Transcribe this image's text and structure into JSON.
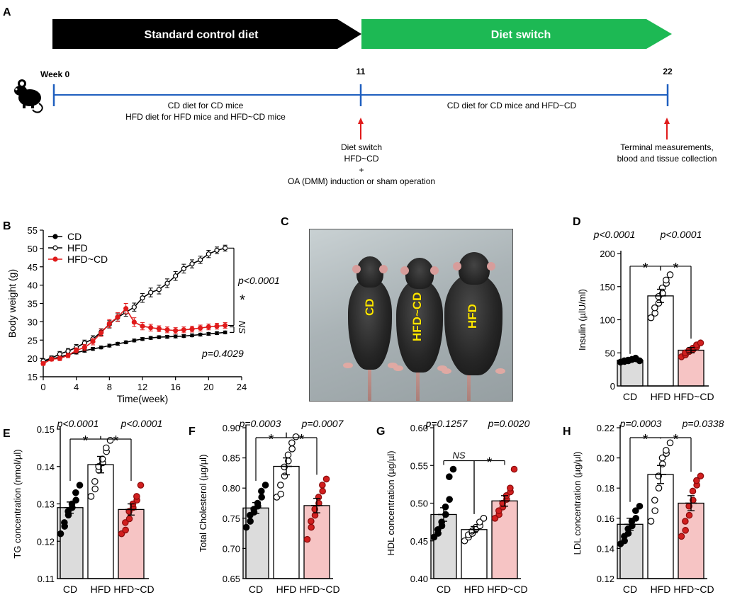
{
  "panels": {
    "A": "A",
    "B": "B",
    "C": "C",
    "D": "D",
    "E": "E",
    "F": "F",
    "G": "G",
    "H": "H"
  },
  "panel_a": {
    "arrow_black": "Standard control diet",
    "arrow_green": "Diet switch",
    "week0": "Week 0",
    "week11": "11",
    "week22": "22",
    "seg1_line1": "CD diet for CD mice",
    "seg1_line2": "HFD diet for HFD mice   and HFD~CD mice",
    "seg2": "CD diet for CD  mice  and HFD~CD",
    "switch_line1": "Diet switch",
    "switch_line2": "HFD~CD",
    "switch_plus": "+",
    "switch_line3": "OA (DMM) induction or sham operation",
    "terminal_line1": "Terminal measurements,",
    "terminal_line2": "blood and tissue collection",
    "colors": {
      "black_arrow": "#000000",
      "green_arrow": "#1db954",
      "timeline": "#1f5fbf",
      "red_arrow": "#e01b1b"
    }
  },
  "panel_c": {
    "label_cd": "CD",
    "label_hfdcd": "HFD~CD",
    "label_hfd": "HFD"
  },
  "chart_data": [
    {
      "id": "B",
      "type": "line",
      "xlabel": "Time(week)",
      "ylabel": "Body weight (g)",
      "xlim": [
        0,
        24
      ],
      "ylim": [
        15,
        55
      ],
      "xticks": [
        "0",
        "4",
        "8",
        "12",
        "16",
        "20",
        "24"
      ],
      "yticks": [
        "15",
        "20",
        "25",
        "30",
        "35",
        "40",
        "45",
        "50",
        "55"
      ],
      "legend": [
        "CD",
        "HFD",
        "HFD~CD"
      ],
      "annotations": {
        "p_top": "p<0.0001",
        "star": "*",
        "ns": "NS",
        "p_bottom": "p=0.4029"
      },
      "x": [
        0,
        1,
        2,
        3,
        4,
        5,
        6,
        7,
        8,
        9,
        10,
        11,
        12,
        13,
        14,
        15,
        16,
        17,
        18,
        19,
        20,
        21,
        22
      ],
      "series": [
        {
          "name": "CD",
          "color": "#000000",
          "fill": "#000000",
          "values": [
            19.2,
            19.8,
            20.4,
            21.0,
            21.6,
            22.1,
            22.6,
            23.0,
            23.5,
            24.0,
            24.4,
            24.9,
            25.3,
            25.6,
            25.8,
            25.9,
            26.0,
            26.1,
            26.3,
            26.5,
            26.7,
            26.9,
            27.1
          ],
          "err": [
            0.4,
            0.4,
            0.4,
            0.4,
            0.4,
            0.4,
            0.4,
            0.4,
            0.4,
            0.4,
            0.4,
            0.4,
            0.4,
            0.4,
            0.4,
            0.4,
            0.4,
            0.4,
            0.4,
            0.4,
            0.4,
            0.4,
            0.4
          ]
        },
        {
          "name": "HFD",
          "color": "#000000",
          "fill": "#ffffff",
          "values": [
            19.3,
            20.1,
            21.2,
            22.0,
            23.0,
            24.2,
            25.3,
            27.2,
            29.3,
            31.2,
            32.6,
            34.0,
            36.5,
            38.0,
            38.8,
            40.5,
            42.5,
            44.5,
            45.8,
            46.9,
            48.5,
            49.5,
            50.1
          ],
          "err": [
            0.6,
            0.6,
            0.7,
            0.7,
            0.8,
            0.8,
            0.9,
            0.9,
            1.0,
            1.0,
            1.1,
            1.1,
            1.2,
            1.2,
            1.2,
            1.2,
            1.2,
            1.2,
            1.1,
            1.0,
            1.0,
            0.9,
            0.8
          ]
        },
        {
          "name": "HFD~CD",
          "color": "#e01b1b",
          "fill": "#e01b1b",
          "values": [
            18.6,
            19.8,
            20.0,
            20.8,
            22.2,
            23.0,
            24.6,
            27.0,
            29.5,
            31.3,
            33.6,
            29.9,
            28.8,
            28.4,
            28.1,
            27.8,
            27.6,
            27.8,
            28.0,
            28.3,
            28.6,
            28.8,
            29.0
          ],
          "err": [
            0.5,
            0.5,
            0.6,
            0.6,
            0.7,
            0.8,
            0.9,
            1.0,
            1.1,
            1.2,
            1.4,
            1.2,
            1.0,
            0.9,
            0.8,
            0.8,
            0.8,
            0.8,
            0.8,
            0.8,
            0.8,
            0.8,
            0.8
          ]
        }
      ]
    },
    {
      "id": "D",
      "type": "bar",
      "ylabel": "Insulin (µlU/ml)",
      "ylim": [
        0,
        200
      ],
      "yticks": [
        "0",
        "50",
        "100",
        "150",
        "200"
      ],
      "categories": [
        "CD",
        "HFD",
        "HFD~CD"
      ],
      "values": [
        39,
        136,
        54
      ],
      "err": [
        2,
        10,
        4
      ],
      "points": [
        [
          36,
          37,
          38,
          38,
          39,
          40,
          40,
          41,
          42,
          38
        ],
        [
          103,
          110,
          118,
          125,
          135,
          140,
          148,
          155,
          160,
          168
        ],
        [
          44,
          47,
          50,
          52,
          54,
          55,
          57,
          59,
          62,
          65
        ]
      ],
      "pvalues": [
        "p<0.0001",
        "p<0.0001"
      ],
      "sig": [
        "*",
        "*"
      ]
    },
    {
      "id": "E",
      "type": "bar",
      "ylabel": "TG concentration (nmol/µl)",
      "ylim": [
        0.11,
        0.15
      ],
      "yticks": [
        "0.11",
        "0.12",
        "0.13",
        "0.14",
        "0.15"
      ],
      "categories": [
        "CD",
        "HFD",
        "HFD~CD"
      ],
      "values": [
        0.129,
        0.1405,
        0.1285
      ],
      "err": [
        0.0015,
        0.0022,
        0.0015
      ],
      "points": [
        [
          0.122,
          0.124,
          0.125,
          0.127,
          0.128,
          0.129,
          0.13,
          0.131,
          0.133,
          0.135
        ],
        [
          0.132,
          0.134,
          0.136,
          0.139,
          0.14,
          0.141,
          0.142,
          0.144,
          0.145,
          0.147
        ],
        [
          0.122,
          0.123,
          0.125,
          0.126,
          0.128,
          0.129,
          0.13,
          0.131,
          0.132,
          0.135
        ]
      ],
      "pvalues": [
        "p<0.0001",
        "p<0.0001"
      ],
      "sig": [
        "*",
        "*"
      ]
    },
    {
      "id": "F",
      "type": "bar",
      "ylabel": "Total Cholesterol (µg/µl)",
      "ylim": [
        0.65,
        0.9
      ],
      "yticks": [
        "0.65",
        "0.70",
        "0.75",
        "0.80",
        "0.85",
        "0.90"
      ],
      "categories": [
        "CD",
        "HFD",
        "HFD~CD"
      ],
      "values": [
        0.767,
        0.836,
        0.771
      ],
      "err": [
        0.009,
        0.014,
        0.012
      ],
      "points": [
        [
          0.735,
          0.745,
          0.755,
          0.76,
          0.765,
          0.77,
          0.775,
          0.785,
          0.795,
          0.805
        ],
        [
          0.785,
          0.79,
          0.805,
          0.82,
          0.835,
          0.845,
          0.855,
          0.865,
          0.875,
          0.885
        ],
        [
          0.715,
          0.735,
          0.745,
          0.755,
          0.765,
          0.775,
          0.785,
          0.795,
          0.805,
          0.815
        ]
      ],
      "pvalues": [
        "p=0.0003",
        "p=0.0007"
      ],
      "sig": [
        "*",
        "*"
      ]
    },
    {
      "id": "G",
      "type": "bar",
      "ylabel": "HDL concentration (µg/µl)",
      "ylim": [
        0.4,
        0.6
      ],
      "yticks": [
        "0.40",
        "0.45",
        "0.50",
        "0.55",
        "0.60"
      ],
      "categories": [
        "CD",
        "HFD",
        "HFD~CD"
      ],
      "values": [
        0.485,
        0.465,
        0.503
      ],
      "err": [
        0.009,
        0.004,
        0.007
      ],
      "points": [
        [
          0.455,
          0.46,
          0.465,
          0.47,
          0.475,
          0.485,
          0.495,
          0.505,
          0.535,
          0.545
        ],
        [
          0.45,
          0.455,
          0.458,
          0.46,
          0.463,
          0.466,
          0.468,
          0.47,
          0.475,
          0.48
        ],
        [
          0.48,
          0.485,
          0.49,
          0.495,
          0.5,
          0.505,
          0.51,
          0.515,
          0.52,
          0.545
        ]
      ],
      "pvalues": [
        "p=0.1257",
        "p=0.0020"
      ],
      "sig": [
        "NS",
        "*"
      ]
    },
    {
      "id": "H",
      "type": "bar",
      "ylabel": "LDL concentration (µg/µl)",
      "ylim": [
        0.12,
        0.22
      ],
      "yticks": [
        "0.12",
        "0.14",
        "0.16",
        "0.18",
        "0.20",
        "0.22"
      ],
      "categories": [
        "CD",
        "HFD",
        "HFD~CD"
      ],
      "values": [
        0.156,
        0.189,
        0.17
      ],
      "err": [
        0.004,
        0.006,
        0.005
      ],
      "points": [
        [
          0.143,
          0.145,
          0.148,
          0.15,
          0.153,
          0.155,
          0.158,
          0.16,
          0.165,
          0.168
        ],
        [
          0.158,
          0.165,
          0.172,
          0.18,
          0.188,
          0.196,
          0.2,
          0.203,
          0.205,
          0.21
        ],
        [
          0.148,
          0.152,
          0.158,
          0.162,
          0.168,
          0.172,
          0.178,
          0.182,
          0.185,
          0.188
        ]
      ],
      "pvalues": [
        "p=0.0003",
        "p=0.0338"
      ],
      "sig": [
        "*",
        "*"
      ]
    }
  ]
}
